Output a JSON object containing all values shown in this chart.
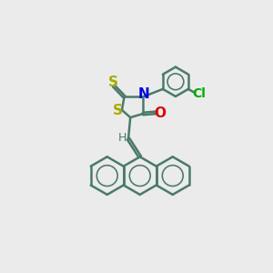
{
  "background_color": "#ebebeb",
  "bond_color": "#4a7a6a",
  "bond_width": 1.8,
  "n_color": "#0000dd",
  "o_color": "#dd0000",
  "s_color": "#aaaa00",
  "cl_color": "#00aa00",
  "h_color": "#4a7a6a",
  "figsize": [
    3.0,
    3.0
  ],
  "dpi": 100,
  "xlim": [
    0,
    10
  ],
  "ylim": [
    0,
    10
  ]
}
